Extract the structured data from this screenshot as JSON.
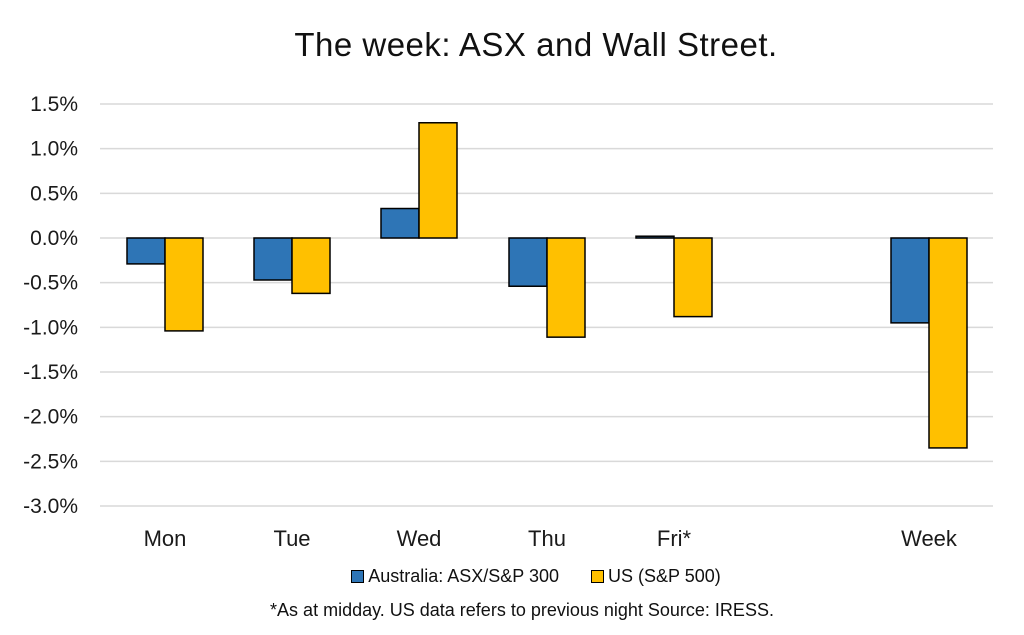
{
  "chart_data": {
    "type": "bar",
    "title": "The week:  ASX and Wall Street.",
    "categories": [
      "Mon",
      "Tue",
      "Wed",
      "Thu",
      "Fri*",
      "Week"
    ],
    "series": [
      {
        "name": "Australia: ASX/S&P 300",
        "color": "#2e75b6",
        "values": [
          -0.29,
          -0.47,
          0.33,
          -0.54,
          0.02,
          -0.95
        ]
      },
      {
        "name": "US (S&P 500)",
        "color": "#ffc000",
        "values": [
          -1.04,
          -0.62,
          1.29,
          -1.11,
          -0.88,
          -2.35
        ]
      }
    ],
    "yticks": [
      "1.5%",
      "1.0%",
      "0.5%",
      "0.0%",
      "-0.5%",
      "-1.0%",
      "-1.5%",
      "-2.0%",
      "-2.5%",
      "-3.0%"
    ],
    "ylim": [
      -3.0,
      1.5
    ],
    "grid": true,
    "legend_position": "bottom",
    "footnote": "*As at midday. US data refers to previous night  Source:  IRESS."
  }
}
